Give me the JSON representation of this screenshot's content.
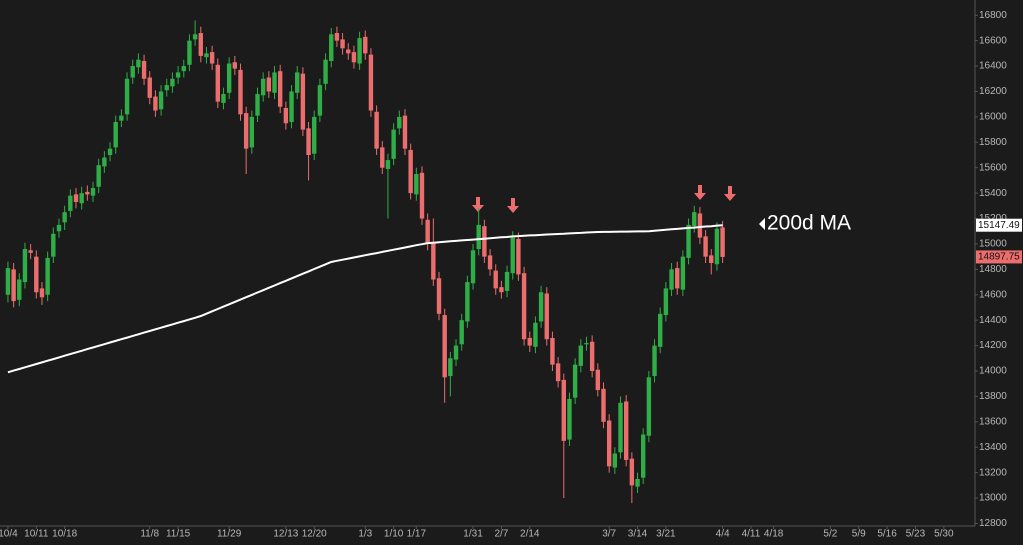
{
  "chart_data": {
    "type": "candlestick",
    "x": [
      0,
      1,
      2,
      3,
      4,
      5,
      6,
      7,
      8,
      9,
      10,
      11,
      12,
      13,
      14,
      15,
      16,
      17,
      18,
      19,
      20,
      21,
      22,
      23,
      24,
      25,
      26,
      27,
      28,
      29,
      30,
      31,
      32,
      33,
      34,
      35,
      36,
      37,
      38,
      39,
      40,
      41,
      42,
      43,
      44,
      45,
      46,
      47,
      48,
      49,
      50,
      51,
      52,
      53,
      54,
      55,
      56,
      57,
      58,
      59,
      60,
      61,
      62,
      63,
      64,
      65,
      66,
      67,
      68,
      69,
      70,
      71,
      72,
      73,
      74,
      75,
      76,
      77,
      78,
      79,
      80,
      81,
      82,
      83,
      84,
      85,
      86,
      87,
      88,
      89,
      90,
      91,
      92,
      93,
      94,
      95,
      96,
      97,
      98,
      99,
      100,
      101,
      102,
      103,
      104,
      105,
      106,
      107,
      108,
      109,
      110,
      111,
      112,
      113,
      114,
      115,
      116,
      117,
      118,
      119,
      120,
      121,
      122,
      123,
      124,
      125,
      126
    ],
    "open": [
      14600,
      14800,
      14560,
      14700,
      14950,
      14900,
      14650,
      14600,
      14900,
      15100,
      15170,
      15260,
      15390,
      15320,
      15410,
      15380,
      15450,
      15610,
      15700,
      15760,
      15970,
      16020,
      16310,
      16390,
      16440,
      16310,
      16160,
      16060,
      16210,
      16240,
      16310,
      16360,
      16410,
      16610,
      16660,
      16470,
      16510,
      16410,
      16110,
      16190,
      16430,
      16370,
      16030,
      15760,
      16010,
      16170,
      16310,
      16190,
      16360,
      16070,
      15960,
      16190,
      16340,
      15910,
      15710,
      16010,
      16260,
      16440,
      16660,
      16610,
      16530,
      16510,
      16420,
      16630,
      16490,
      16040,
      15760,
      15590,
      15670,
      15910,
      16010,
      15740,
      15390,
      15560,
      15190,
      15010,
      14730,
      14440,
      13960,
      14090,
      14210,
      14390,
      14690,
      14960,
      15140,
      14910,
      14790,
      14660,
      14630,
      14770,
      15040,
      14770,
      14260,
      14190,
      14390,
      14610,
      14260,
      14060,
      13930,
      13460,
      13790,
      14040,
      14210,
      14230,
      14010,
      13860,
      13610,
      13240,
      13360,
      13760,
      13310,
      13090,
      13160,
      13490,
      13960,
      14190,
      14440,
      14640,
      14810,
      14640,
      14890,
      15140,
      15240,
      15060,
      14910,
      14840,
      15130
    ],
    "high": [
      14860,
      14850,
      14770,
      15010,
      15000,
      14950,
      14700,
      14940,
      15130,
      15200,
      15300,
      15430,
      15440,
      15450,
      15460,
      15490,
      15670,
      15730,
      15800,
      16010,
      16060,
      16350,
      16450,
      16500,
      16490,
      16360,
      16210,
      16250,
      16300,
      16350,
      16400,
      16450,
      16650,
      16760,
      16710,
      16550,
      16560,
      16460,
      16230,
      16470,
      16480,
      16420,
      16080,
      16050,
      16230,
      16350,
      16360,
      16400,
      16410,
      16120,
      16250,
      16400,
      16390,
      15960,
      16050,
      16300,
      16500,
      16700,
      16710,
      16660,
      16580,
      16560,
      16670,
      16680,
      16540,
      16090,
      15810,
      15710,
      15950,
      16050,
      16060,
      15790,
      15600,
      15610,
      15240,
      15200,
      14780,
      14490,
      14150,
      14250,
      14450,
      14750,
      15000,
      15280,
      15190,
      14960,
      14840,
      14710,
      14830,
      15100,
      15090,
      14820,
      14310,
      14430,
      14670,
      14660,
      14310,
      14110,
      13980,
      13830,
      14100,
      14250,
      14270,
      14280,
      14060,
      13910,
      13660,
      13400,
      13800,
      13810,
      13360,
      13200,
      13550,
      14000,
      14250,
      14500,
      14700,
      14850,
      14860,
      14950,
      15200,
      15300,
      15290,
      15110,
      14960,
      15170,
      15180
    ],
    "low": [
      14540,
      14500,
      14510,
      14650,
      14880,
      14570,
      14520,
      14550,
      14850,
      15050,
      15110,
      15210,
      15280,
      15270,
      15340,
      15330,
      15400,
      15560,
      15650,
      15710,
      15920,
      15970,
      16260,
      16340,
      16250,
      16100,
      16000,
      16010,
      16160,
      16190,
      16260,
      16310,
      16360,
      16560,
      16430,
      16420,
      16370,
      16070,
      16060,
      16140,
      16330,
      15970,
      15550,
      15710,
      15960,
      16120,
      16150,
      16140,
      16030,
      15900,
      15910,
      16140,
      15850,
      15500,
      15660,
      15960,
      16210,
      16390,
      16550,
      16490,
      16450,
      16380,
      16370,
      16450,
      16000,
      15700,
      15550,
      15200,
      15620,
      15860,
      15700,
      15350,
      15340,
      15150,
      14950,
      14670,
      14400,
      13750,
      13800,
      14040,
      14160,
      14340,
      14640,
      14910,
      14850,
      14750,
      14600,
      14570,
      14580,
      14720,
      14710,
      14200,
      14150,
      14140,
      14340,
      14200,
      14000,
      13870,
      13000,
      13410,
      13740,
      13990,
      14160,
      13950,
      13800,
      13550,
      13200,
      13190,
      13310,
      13250,
      12960,
      13040,
      13110,
      13440,
      13910,
      14140,
      14390,
      14590,
      14600,
      14590,
      14840,
      15090,
      15000,
      14850,
      14760,
      14790,
      14850
    ],
    "close": [
      14810,
      14550,
      14720,
      14960,
      14930,
      14620,
      14580,
      14890,
      15080,
      15150,
      15250,
      15380,
      15330,
      15400,
      15390,
      15440,
      15620,
      15680,
      15750,
      15960,
      16010,
      16300,
      16400,
      16450,
      16300,
      16150,
      16050,
      16200,
      16250,
      16300,
      16350,
      16400,
      16600,
      16650,
      16480,
      16500,
      16420,
      16120,
      16180,
      16420,
      16380,
      16020,
      15750,
      16000,
      16180,
      16300,
      16200,
      16350,
      16080,
      15950,
      16200,
      16350,
      15900,
      15700,
      16000,
      16250,
      16450,
      16650,
      16600,
      16540,
      16500,
      16430,
      16620,
      16500,
      16050,
      15750,
      15600,
      15660,
      15900,
      16000,
      15750,
      15400,
      15550,
      15200,
      15000,
      14720,
      14450,
      13950,
      14100,
      14200,
      14400,
      14700,
      14950,
      15150,
      14900,
      14800,
      14650,
      14620,
      14780,
      15050,
      14760,
      14250,
      14200,
      14380,
      14620,
      14250,
      14050,
      13920,
      13450,
      13780,
      14050,
      14200,
      14220,
      14000,
      13850,
      13600,
      13250,
      13350,
      13750,
      13300,
      13100,
      13150,
      13500,
      13950,
      14200,
      14450,
      14650,
      14800,
      14650,
      14900,
      15150,
      15250,
      15050,
      14900,
      14850,
      15120,
      14897.75
    ],
    "up_color": "#2fae47",
    "down_color": "#ec6d6d",
    "ma": {
      "color": "#ffffff",
      "values": [
        13990,
        14003,
        14016,
        14029,
        14042,
        14055,
        14068,
        14081,
        14094,
        14107,
        14120,
        14133,
        14146,
        14159,
        14172,
        14185,
        14198,
        14211,
        14224,
        14237,
        14250,
        14263,
        14276,
        14289,
        14302,
        14315,
        14328,
        14341,
        14354,
        14367,
        14380,
        14393,
        14406,
        14419,
        14433,
        14451,
        14470,
        14488,
        14507,
        14525,
        14544,
        14562,
        14581,
        14599,
        14618,
        14636,
        14655,
        14673,
        14692,
        14710,
        14729,
        14747,
        14766,
        14784,
        14803,
        14821,
        14840,
        14858,
        14867,
        14876,
        14885,
        14893,
        14902,
        14911,
        14920,
        14928,
        14937,
        14946,
        14955,
        14963,
        14972,
        14981,
        14990,
        14998,
        15007,
        15010,
        15014,
        15017,
        15021,
        15024,
        15028,
        15031,
        15034,
        15038,
        15041,
        15045,
        15048,
        15052,
        15055,
        15059,
        15062,
        15064,
        15067,
        15069,
        15071,
        15074,
        15076,
        15078,
        15080,
        15083,
        15085,
        15087,
        15090,
        15092,
        15094,
        15095,
        15095,
        15096,
        15097,
        15097,
        15098,
        15099,
        15099,
        15100,
        15104,
        15107,
        15111,
        15115,
        15118,
        15122,
        15126,
        15129,
        15133,
        15137,
        15140,
        15144,
        15147.49
      ]
    },
    "annotation": "200d MA",
    "xlim": [
      -1.4,
      170.5
    ],
    "xticks": [
      {
        "value": 0,
        "label": "10/4"
      },
      {
        "value": 5,
        "label": "10/11"
      },
      {
        "value": 10,
        "label": "10/18"
      },
      {
        "value": 25,
        "label": "11/8"
      },
      {
        "value": 30,
        "label": "11/15"
      },
      {
        "value": 39,
        "label": "11/29"
      },
      {
        "value": 49,
        "label": "12/13"
      },
      {
        "value": 54,
        "label": "12/20"
      },
      {
        "value": 63,
        "label": "1/3"
      },
      {
        "value": 68,
        "label": "1/10"
      },
      {
        "value": 72,
        "label": "1/17"
      },
      {
        "value": 82,
        "label": "1/31"
      },
      {
        "value": 87,
        "label": "2/7"
      },
      {
        "value": 92,
        "label": "2/14"
      },
      {
        "value": 106,
        "label": "3/7"
      },
      {
        "value": 111,
        "label": "3/14"
      },
      {
        "value": 116,
        "label": "3/21"
      },
      {
        "value": 126,
        "label": "4/4"
      },
      {
        "value": 131,
        "label": "4/11"
      },
      {
        "value": 135,
        "label": "4/18"
      },
      {
        "value": 145,
        "label": "5/2"
      },
      {
        "value": 150,
        "label": "5/9"
      },
      {
        "value": 155,
        "label": "5/16"
      },
      {
        "value": 160,
        "label": "5/23"
      },
      {
        "value": 165,
        "label": "5/30"
      }
    ],
    "ylim": [
      12780,
      16920
    ],
    "yticks": [
      12800,
      13000,
      13200,
      13400,
      13600,
      13800,
      14000,
      14200,
      14400,
      14600,
      14800,
      15000,
      15200,
      15400,
      15600,
      15800,
      16000,
      16200,
      16400,
      16600,
      16800
    ]
  }
}
